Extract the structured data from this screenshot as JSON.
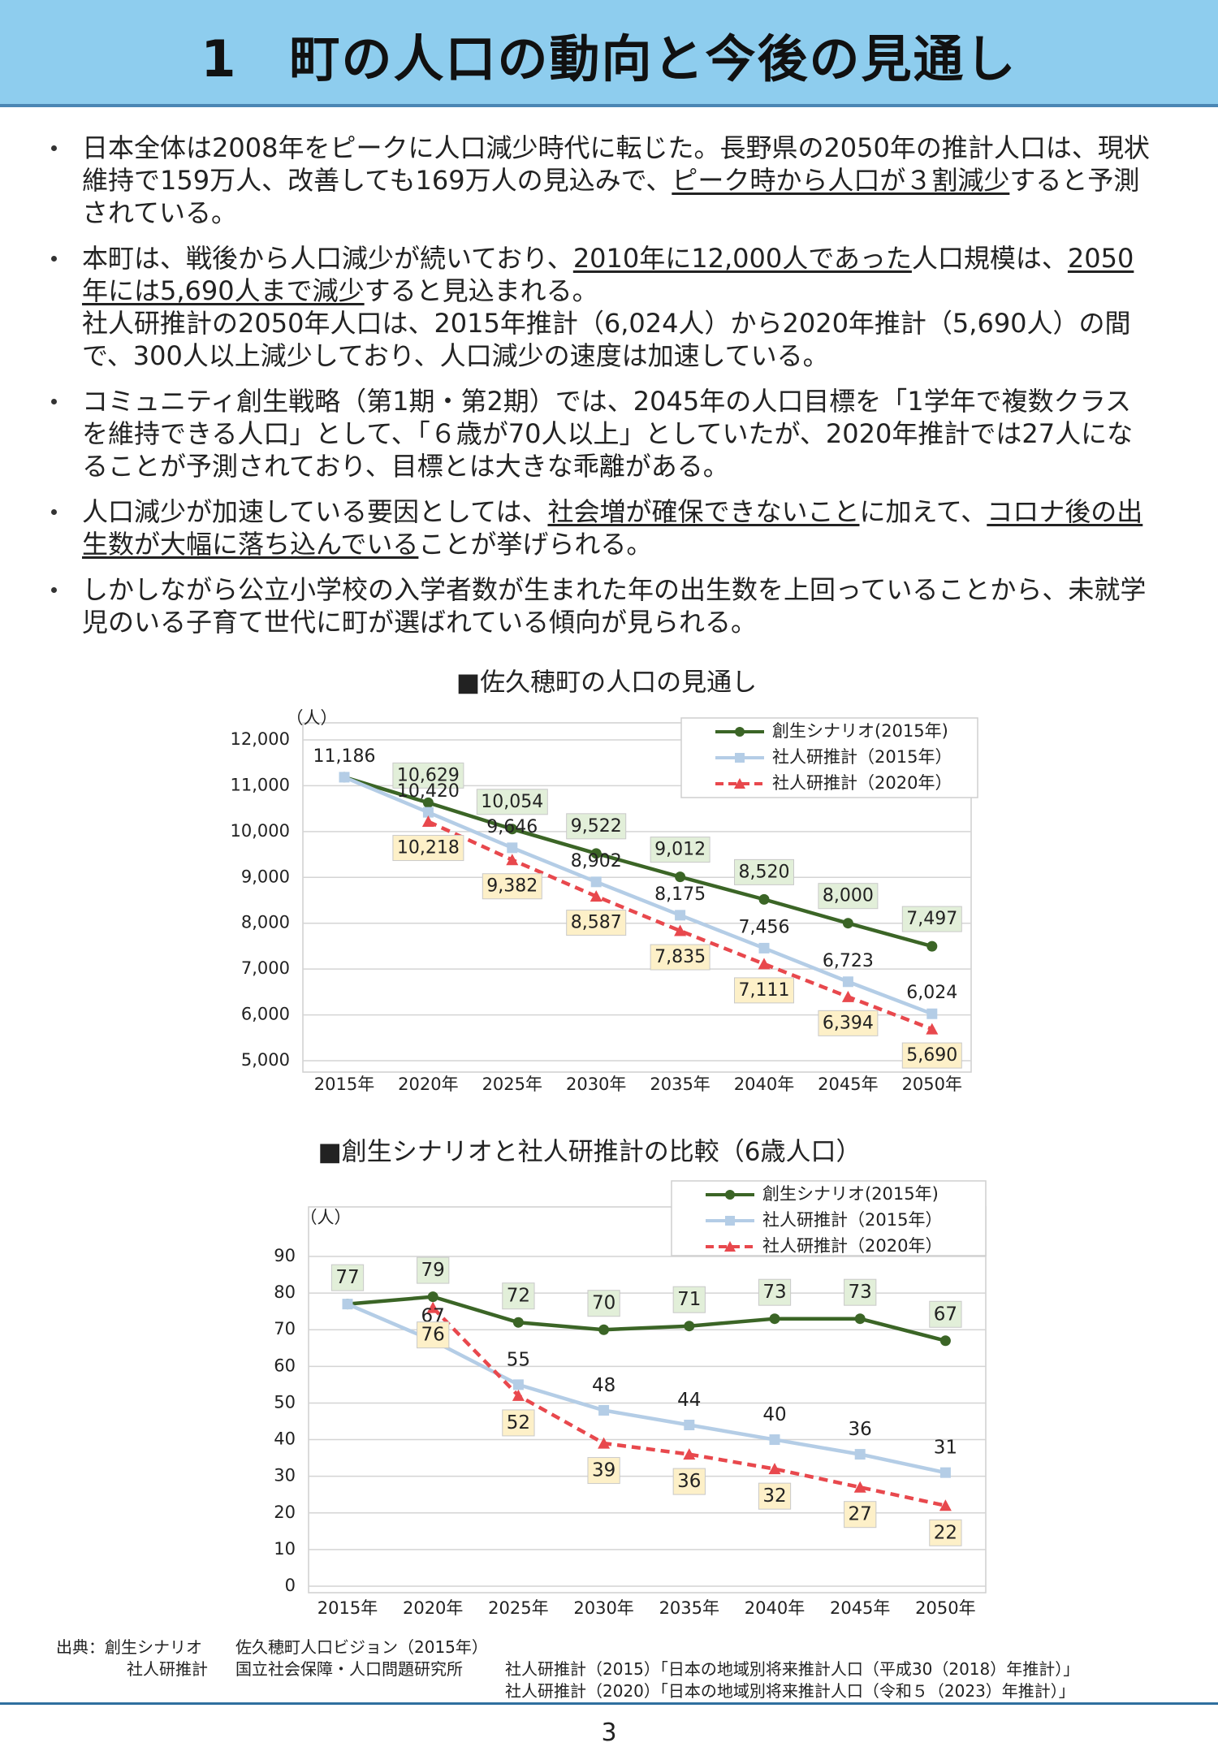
{
  "header": {
    "title": "1　町の人口の動向と今後の見通し"
  },
  "bullets": [
    [
      [
        {
          "text": "日本全体は2008年をピークに人口減少時代に転じた。長野県の2050年の推計人口は、現状維持で159万人、改善しても169万人の見込みで、"
        },
        {
          "text": "ピーク時から人口が３割減少",
          "underline": true
        },
        {
          "text": "すると予測されている。"
        }
      ]
    ],
    [
      [
        {
          "text": "本町は、戦後から人口減少が続いており、"
        },
        {
          "text": "2010年に12,000人であった",
          "underline": true
        },
        {
          "text": "人口規模は、"
        },
        {
          "text": "2050年には5,690人まで減少",
          "underline": true
        },
        {
          "text": "すると見込まれる。"
        }
      ],
      [
        {
          "text": "社人研推計の2050年人口は、2015年推計（6,024人）から2020年推計（5,690人）の間で、300人以上減少しており、人口減少の速度は加速している。"
        }
      ]
    ],
    [
      [
        {
          "text": "コミュニティ創生戦略（第1期・第2期）では、2045年の人口目標を「1学年で複数クラスを維持できる人口」として、「６歳が70人以上」としていたが、2020年推計では27人になることが予測されており、目標とは大きな乖離がある。"
        }
      ]
    ],
    [
      [
        {
          "text": "人口減少が加速している要因としては、"
        },
        {
          "text": "社会増が確保できないこと",
          "underline": true
        },
        {
          "text": "に加えて、"
        },
        {
          "text": "コロナ後の出生数が大幅に落ち込んでいる",
          "underline": true
        },
        {
          "text": "ことが挙げられる。"
        }
      ]
    ],
    [
      [
        {
          "text": "しかしながら公立小学校の入学者数が生まれた年の出生数を上回っていることから、未就学児のいる子育て世代に町が選ばれている傾向が見られる。"
        }
      ]
    ]
  ],
  "chart_data": [
    {
      "type": "line",
      "title": "■佐久穂町の人口の見通し",
      "y_label": "（人）",
      "categories": [
        "2015年",
        "2020年",
        "2025年",
        "2030年",
        "2035年",
        "2040年",
        "2045年",
        "2050年"
      ],
      "ylim": [
        5000,
        12000
      ],
      "yticks": [
        {
          "value": 5000,
          "label": "5,000"
        },
        {
          "value": 6000,
          "label": "6,000"
        },
        {
          "value": 7000,
          "label": "7,000"
        },
        {
          "value": 8000,
          "label": "8,000"
        },
        {
          "value": 9000,
          "label": "9,000"
        },
        {
          "value": 10000,
          "label": "10,000"
        },
        {
          "value": 11000,
          "label": "11,000"
        },
        {
          "value": 12000,
          "label": "12,000"
        }
      ],
      "grid": true,
      "legend": "upper right",
      "series": [
        {
          "name": "創生シナリオ(2015年)",
          "color": "#3b6526",
          "marker": "circle",
          "label_bg": "#e2efd9",
          "values": [
            11186,
            10629,
            10054,
            9522,
            9012,
            8520,
            8000,
            7497
          ],
          "value_labels": [
            null,
            "10,629",
            "10,054",
            "9,522",
            "9,012",
            "8,520",
            "8,000",
            "7,497"
          ]
        },
        {
          "name": "社人研推計（2015年）",
          "color": "#b4cde6",
          "marker": "square",
          "values": [
            11186,
            10420,
            9646,
            8902,
            8175,
            7456,
            6723,
            6024
          ],
          "value_labels": [
            "11,186",
            "10,420",
            "9,646",
            "8,902",
            "8,175",
            "7,456",
            "6,723",
            "6,024"
          ]
        },
        {
          "name": "社人研推計（2020年）",
          "color": "#e8484d",
          "marker": "triangle",
          "dashed": true,
          "label_bg": "#fdf0c8",
          "values": [
            null,
            10218,
            9382,
            8587,
            7835,
            7111,
            6394,
            5690
          ],
          "value_labels": [
            null,
            "10,218",
            "9,382",
            "8,587",
            "7,835",
            "7,111",
            "6,394",
            "5,690"
          ]
        }
      ]
    },
    {
      "type": "line",
      "title": "■創生シナリオと社人研推計の比較（6歳人口）",
      "y_label": "（人）",
      "categories": [
        "2015年",
        "2020年",
        "2025年",
        "2030年",
        "2035年",
        "2040年",
        "2045年",
        "2050年"
      ],
      "ylim": [
        0,
        90
      ],
      "yticks": [
        0,
        10,
        20,
        30,
        40,
        50,
        60,
        70,
        80,
        90
      ],
      "grid": true,
      "legend": "upper right",
      "series": [
        {
          "name": "創生シナリオ(2015年)",
          "color": "#3b6526",
          "marker": "circle",
          "label_bg": "#e2efd9",
          "values": [
            77,
            79,
            72,
            70,
            71,
            73,
            73,
            67
          ]
        },
        {
          "name": "社人研推計（2015年）",
          "color": "#b4cde6",
          "marker": "square",
          "values": [
            77,
            67,
            55,
            48,
            44,
            40,
            36,
            31
          ],
          "value_labels": [
            null,
            "67",
            "55",
            "48",
            "44",
            "40",
            "36",
            "31"
          ]
        },
        {
          "name": "社人研推計（2020年）",
          "color": "#e8484d",
          "marker": "triangle",
          "dashed": true,
          "label_bg": "#fdf0c8",
          "values": [
            null,
            76,
            52,
            39,
            36,
            32,
            27,
            22
          ]
        }
      ]
    }
  ],
  "source": [
    [
      "出典：創生シナリオ",
      "佐久穂町人口ビジョン（2015年）"
    ],
    [
      "社人研推計",
      "国立社会保障・人口問題研究所",
      "社人研推計（2015）「日本の地域別将来推計人口（平成30（2018）年推計）」"
    ],
    [
      "社人研推計（2020）「日本の地域別将来推計人口（令和５（2023）年推計）」"
    ]
  ],
  "page_number": "3"
}
